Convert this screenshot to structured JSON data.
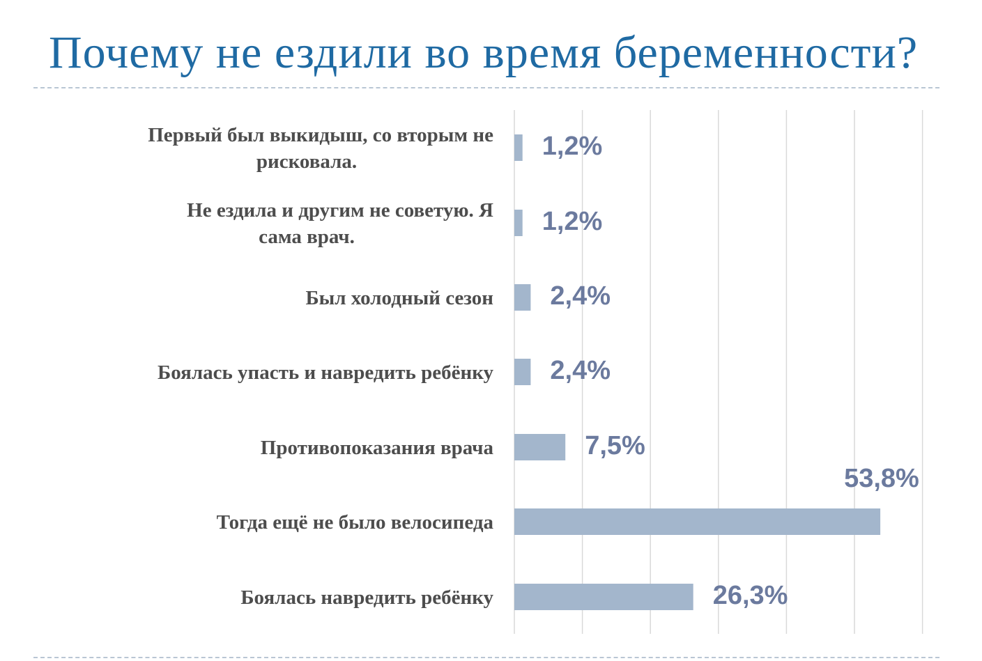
{
  "title": "Почему не ездили во время беременности?",
  "colors": {
    "title": "#1f6aa3",
    "bar": "#a3b6cc",
    "value_label": "#6b7a9e",
    "category_label": "#4d4d4d",
    "grid": "#d9d9d9"
  },
  "chart_data": {
    "type": "bar",
    "orientation": "horizontal",
    "grid": true,
    "xlim": [
      0,
      60
    ],
    "categories": [
      [
        "Первый был выкидыш, со вторым не",
        "рисковала."
      ],
      [
        "Не ездила и другим не советую. Я",
        "сама врач."
      ],
      [
        "Был холодный сезон"
      ],
      [
        "Боялась упасть и навредить ребёнку"
      ],
      [
        "Противопоказания врача"
      ],
      [
        "Тогда ещё не было велосипеда"
      ],
      [
        "Боялась навредить ребёнку"
      ]
    ],
    "values": [
      1.2,
      1.2,
      2.4,
      2.4,
      7.5,
      53.8,
      26.3
    ],
    "value_labels": [
      "1,2%",
      "1,2%",
      "2,4%",
      "2,4%",
      "7,5%",
      "53,8%",
      "26,3%"
    ]
  }
}
